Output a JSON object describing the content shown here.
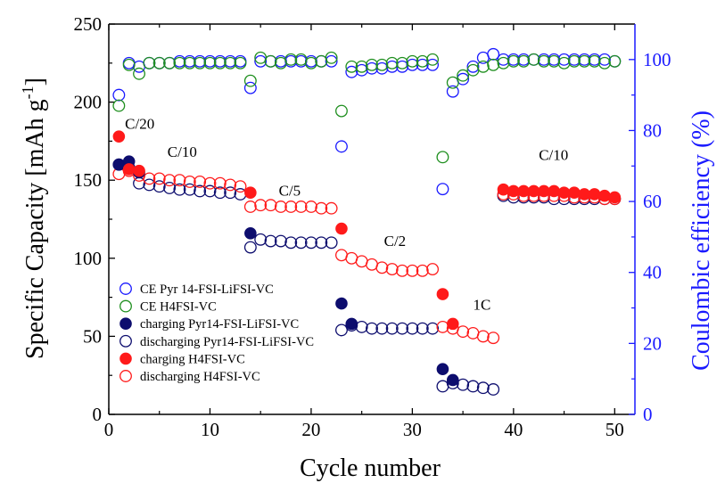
{
  "chart_data": {
    "type": "scatter",
    "xlabel": "Cycle number",
    "ylabel_left": "Specific Capacity [mAh g",
    "ylabel_left_sup": "-1",
    "ylabel_left_end": "]",
    "ylabel_right": "Coulombic efficiency (%)",
    "xlim": [
      0,
      52
    ],
    "ylim_left": [
      0,
      250
    ],
    "ylim_right": [
      0,
      110
    ],
    "x_ticks": [
      "0",
      "10",
      "20",
      "30",
      "40",
      "50"
    ],
    "y_left_ticks": [
      "0",
      "50",
      "100",
      "150",
      "200",
      "250"
    ],
    "y_right_ticks": [
      "0",
      "20",
      "40",
      "60",
      "80",
      "100"
    ],
    "colors": {
      "blue": "#1a1aff",
      "green": "#1f8f1f",
      "navy": "#0d0d6e",
      "red": "#ff1a1a"
    },
    "annotations": [
      {
        "text": "C/20",
        "x": 1.6,
        "y": 183
      },
      {
        "text": "C/10",
        "x": 5.8,
        "y": 165
      },
      {
        "text": "C/5",
        "x": 16.8,
        "y": 140
      },
      {
        "text": "C/2",
        "x": 27.2,
        "y": 108
      },
      {
        "text": "1C",
        "x": 36.0,
        "y": 67
      },
      {
        "text": "C/10",
        "x": 42.5,
        "y": 163
      }
    ],
    "series": [
      {
        "name": "CE Pyr 14-FSI-LiFSI-VC",
        "axis": "right",
        "color": "blue",
        "filled": false,
        "x": [
          1,
          2,
          3,
          4,
          5,
          6,
          7,
          8,
          9,
          10,
          11,
          12,
          13,
          14,
          15,
          16,
          17,
          18,
          19,
          20,
          21,
          22,
          23,
          24,
          25,
          26,
          27,
          28,
          29,
          30,
          31,
          32,
          33,
          34,
          35,
          36,
          37,
          38,
          39,
          40,
          41,
          42,
          43,
          44,
          45,
          46,
          47,
          48,
          49,
          50
        ],
        "y": [
          90,
          99,
          98,
          99,
          99,
          99,
          99.5,
          99.5,
          99.5,
          99.5,
          99.5,
          99.5,
          99.5,
          92,
          99.5,
          99.5,
          99.5,
          99.5,
          99.5,
          99.5,
          99.5,
          99.5,
          75.5,
          96.5,
          97,
          97.5,
          97.5,
          98,
          98,
          98.5,
          98.5,
          98.5,
          63.5,
          91,
          94.5,
          98,
          100.5,
          101.5,
          100,
          100,
          100,
          100,
          100,
          100,
          100,
          100,
          100,
          100,
          100,
          99.5
        ]
      },
      {
        "name": "CE H4FSI-VC",
        "axis": "right",
        "color": "green",
        "filled": false,
        "x": [
          1,
          2,
          3,
          4,
          5,
          6,
          7,
          8,
          9,
          10,
          11,
          12,
          13,
          14,
          15,
          16,
          17,
          18,
          19,
          20,
          21,
          22,
          23,
          24,
          25,
          26,
          27,
          28,
          29,
          30,
          31,
          32,
          33,
          34,
          35,
          36,
          37,
          38,
          39,
          40,
          41,
          42,
          43,
          44,
          45,
          46,
          47,
          48,
          49,
          50
        ],
        "y": [
          87,
          98.5,
          96,
          99,
          99,
          99,
          99,
          99,
          99,
          99,
          99,
          99,
          99,
          94,
          100.5,
          99.5,
          99,
          100,
          100,
          99,
          99.5,
          100.5,
          85.5,
          98,
          98,
          98.5,
          98.5,
          99,
          99,
          99.5,
          99.5,
          100,
          72.5,
          93.5,
          95.5,
          97,
          98,
          98.5,
          99,
          99.5,
          99.5,
          100,
          99.5,
          99.5,
          99,
          99.5,
          99.5,
          99.5,
          99,
          99.5
        ]
      },
      {
        "name": "charging Pyr14-FSI-LiFSI-VC",
        "axis": "left",
        "color": "navy",
        "filled": true,
        "x": [
          1,
          2,
          3,
          14,
          23,
          24,
          33,
          34
        ],
        "y": [
          160,
          162,
          155,
          116,
          71,
          58,
          29,
          22
        ]
      },
      {
        "name": "discharging Pyr14-FSI-LiFSI-VC",
        "axis": "left",
        "color": "navy",
        "filled": false,
        "x": [
          1,
          2,
          3,
          4,
          5,
          6,
          7,
          8,
          9,
          10,
          11,
          12,
          13,
          14,
          15,
          16,
          17,
          18,
          19,
          20,
          21,
          22,
          23,
          24,
          25,
          26,
          27,
          28,
          29,
          30,
          31,
          32,
          33,
          34,
          35,
          36,
          37,
          38,
          39,
          40,
          41,
          42,
          43,
          44,
          45,
          46,
          47,
          48,
          49,
          50
        ],
        "y": [
          160,
          158,
          148,
          147,
          146,
          145,
          144,
          144,
          143,
          143,
          142,
          142,
          141,
          107,
          112,
          111,
          111,
          110,
          110,
          110,
          110,
          110,
          54,
          57,
          56,
          55,
          55,
          55,
          55,
          55,
          55,
          55,
          18,
          20,
          19,
          18,
          17,
          16,
          140,
          139,
          139,
          139,
          139,
          138,
          138,
          138,
          138,
          138,
          138,
          138
        ]
      },
      {
        "name": "charging H4FSI-VC",
        "axis": "left",
        "color": "red",
        "filled": true,
        "x": [
          1,
          2,
          3,
          14,
          23,
          33,
          34,
          39,
          40,
          41,
          42,
          43,
          44,
          45,
          46,
          47,
          48,
          49,
          50
        ],
        "y": [
          178,
          157,
          156,
          142,
          119,
          77,
          58,
          144,
          143,
          143,
          143,
          143,
          143,
          142,
          142,
          141,
          141,
          140,
          139
        ]
      },
      {
        "name": "discharging H4FSI-VC",
        "axis": "left",
        "color": "red",
        "filled": false,
        "x": [
          1,
          2,
          3,
          4,
          5,
          6,
          7,
          8,
          9,
          10,
          11,
          12,
          13,
          14,
          15,
          16,
          17,
          18,
          19,
          20,
          21,
          22,
          23,
          24,
          25,
          26,
          27,
          28,
          29,
          30,
          31,
          32,
          33,
          34,
          35,
          36,
          37,
          38,
          39,
          40,
          41,
          42,
          43,
          44,
          45,
          46,
          47,
          48,
          49,
          50
        ],
        "y": [
          154,
          156,
          153,
          151,
          151,
          150,
          150,
          149,
          149,
          148,
          148,
          147,
          146,
          133,
          134,
          134,
          133,
          133,
          133,
          133,
          132,
          132,
          102,
          100,
          98,
          96,
          94,
          93,
          92,
          92,
          92,
          93,
          56,
          55,
          53,
          52,
          50,
          49,
          141,
          141,
          140,
          140,
          140,
          140,
          140,
          139,
          139,
          139,
          138,
          138
        ]
      }
    ],
    "legend_order": [
      0,
      1,
      2,
      3,
      4,
      5
    ]
  }
}
